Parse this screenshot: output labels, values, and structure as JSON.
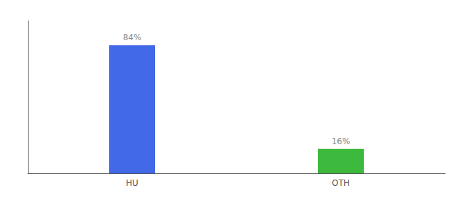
{
  "chart_data": {
    "type": "bar",
    "categories": [
      "HU",
      "OTH"
    ],
    "values": [
      84,
      16
    ],
    "value_labels": [
      "84%",
      "16%"
    ],
    "colors": [
      "#4169e8",
      "#3dba3d"
    ],
    "ylim": [
      0,
      100
    ],
    "yticks": [],
    "grid": false,
    "data_labels": true,
    "tick_labels": "x"
  }
}
